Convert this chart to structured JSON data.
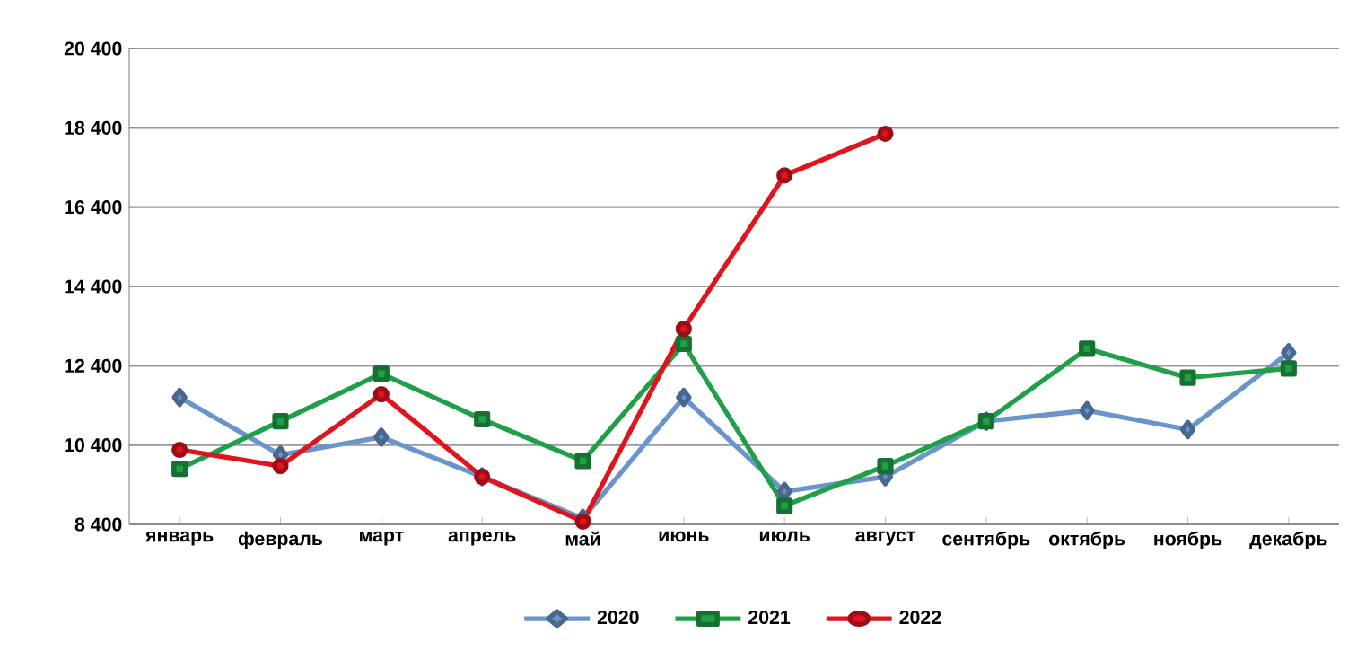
{
  "chart_data": {
    "type": "line",
    "categories": [
      "январь",
      "февраль",
      "март",
      "апрель",
      "май",
      "июнь",
      "июль",
      "август",
      "сентябрь",
      "октябрь",
      "ноябрь",
      "декабрь"
    ],
    "series": [
      {
        "name": "2020",
        "color": "#6a94cc",
        "marker": "diamond",
        "values": [
          11600,
          10150,
          10600,
          9600,
          8550,
          11600,
          9230,
          9600,
          11000,
          11270,
          10790,
          12730
        ]
      },
      {
        "name": "2021",
        "color": "#1fa048",
        "marker": "square",
        "values": [
          9800,
          11000,
          12200,
          11050,
          10000,
          12950,
          8870,
          9870,
          11000,
          12830,
          12100,
          12330
        ]
      },
      {
        "name": "2022",
        "color": "#e0141c",
        "marker": "circle",
        "values": [
          10280,
          9870,
          11680,
          9600,
          8470,
          13330,
          17200,
          18250,
          null,
          null,
          null,
          null
        ]
      }
    ],
    "ylim": [
      8400,
      20400
    ],
    "yticks": [
      {
        "value": 8400,
        "label": "8 400"
      },
      {
        "value": 10400,
        "label": "10 400"
      },
      {
        "value": 12400,
        "label": "12 400"
      },
      {
        "value": 14400,
        "label": "14 400"
      },
      {
        "value": 16400,
        "label": "16 400"
      },
      {
        "value": 18400,
        "label": "18 400"
      },
      {
        "value": 20400,
        "label": "20 400"
      }
    ],
    "grid": "y",
    "legend": "bottom",
    "line_style": "solid"
  }
}
